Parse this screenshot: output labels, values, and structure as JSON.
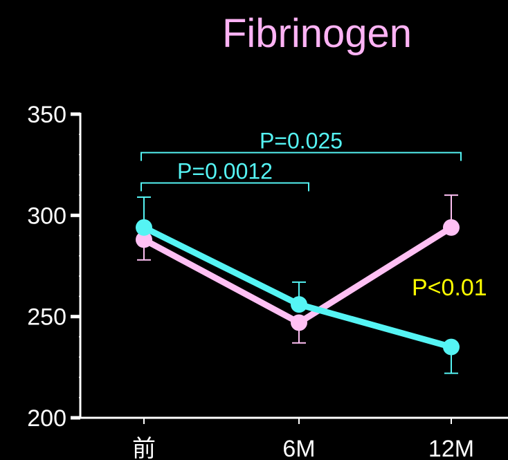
{
  "colors": {
    "background": "#000000",
    "title": "#ffb3f5",
    "series_pink": "#ffc0f4",
    "series_cyan": "#55f4f4",
    "pvalue_annotation": "#ffff00",
    "axis": "#ffffff"
  },
  "chart_data": {
    "type": "line",
    "title": "Fibrinogen",
    "xlabel": "",
    "ylabel": "",
    "categories": [
      "前",
      "6M",
      "12M"
    ],
    "ylim": [
      200,
      350
    ],
    "yticks": [
      "350",
      "300",
      "250",
      "200"
    ],
    "series": [
      {
        "color_key": "series_pink",
        "values": [
          288,
          247,
          294
        ],
        "err_up": [
          0,
          0,
          16
        ],
        "err_down": [
          10,
          10,
          0
        ]
      },
      {
        "color_key": "series_cyan",
        "values": [
          294,
          256,
          235
        ],
        "err_up": [
          15,
          11,
          0
        ],
        "err_down": [
          0,
          0,
          13
        ]
      }
    ],
    "brackets": [
      {
        "label": "P=0.025",
        "from": 0,
        "to": 2,
        "level": 331
      },
      {
        "label": "P=0.0012",
        "from": 0,
        "to": 1,
        "level": 316
      }
    ],
    "annotation": "P<0.01",
    "grid": false
  }
}
